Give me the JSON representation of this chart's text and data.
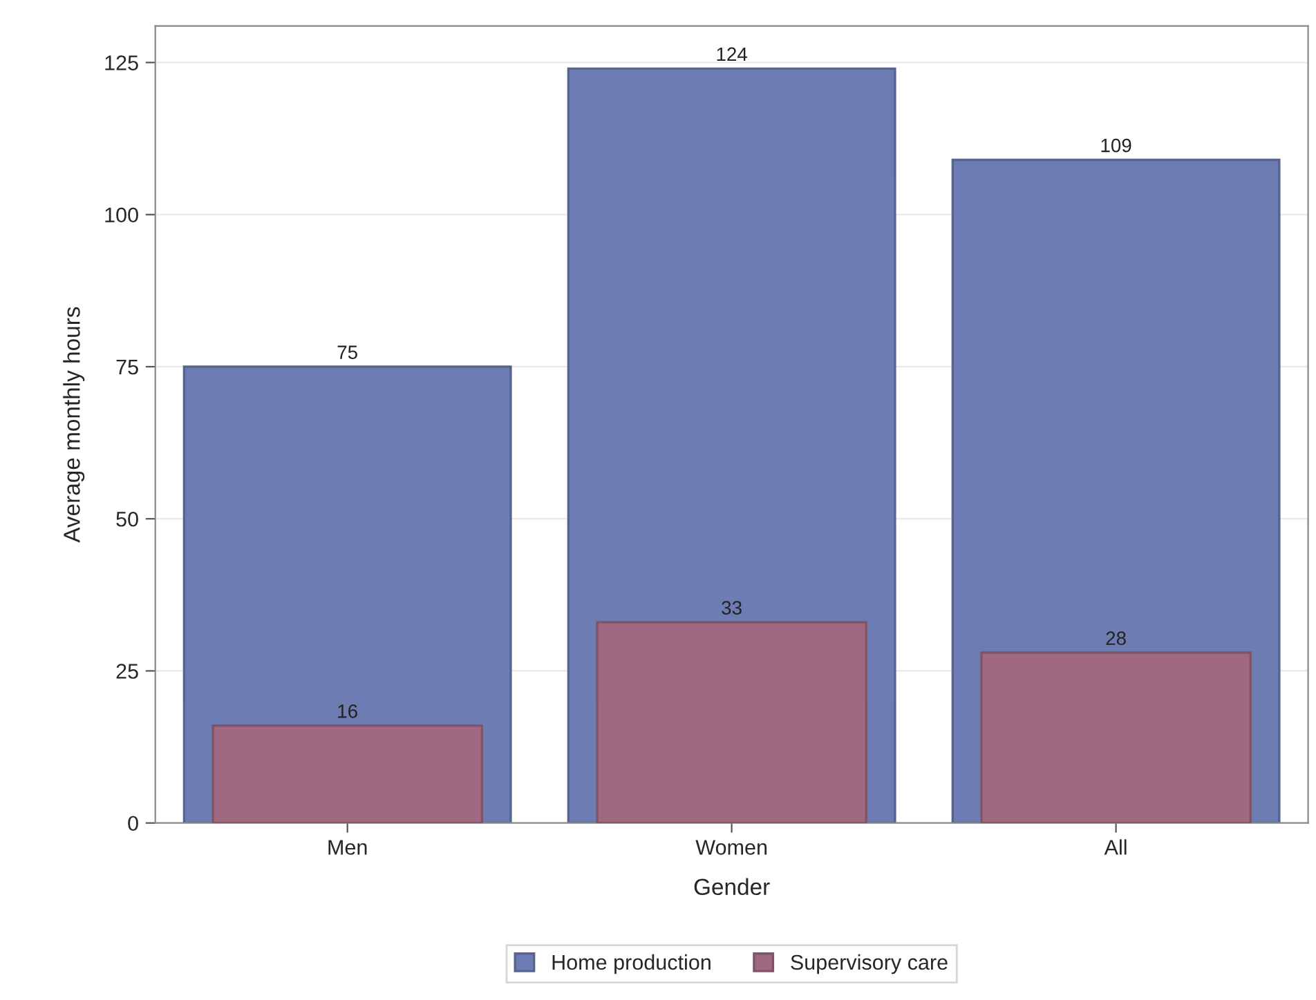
{
  "chart_data": {
    "type": "bar",
    "xlabel": "Gender",
    "ylabel": "Average monthly hours",
    "categories": [
      "Men",
      "Women",
      "All"
    ],
    "series": [
      {
        "name": "Home production",
        "color": "#6d7db3",
        "values": [
          75,
          124,
          109
        ]
      },
      {
        "name": "Supervisory care",
        "color": "#a0697f",
        "values": [
          16,
          33,
          28
        ]
      }
    ],
    "ylim": [
      0,
      131
    ],
    "yticks": [
      0,
      25,
      50,
      75,
      100,
      125
    ],
    "grid": "y",
    "legend": "bottom",
    "data_labels": true
  }
}
